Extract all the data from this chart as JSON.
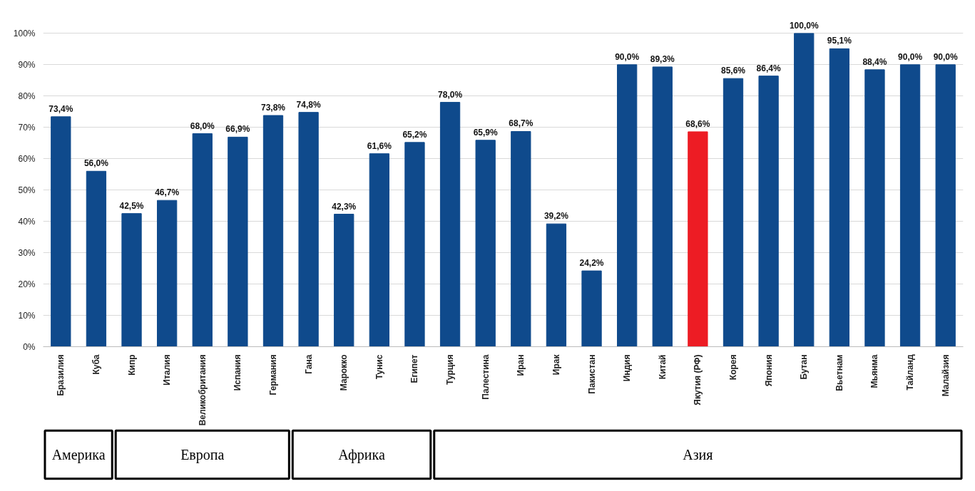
{
  "chart_data": {
    "type": "bar",
    "categories": [
      "Бразилия",
      "Куба",
      "Кипр",
      "Италия",
      "Великобритания",
      "Испания",
      "Германия",
      "Гана",
      "Марокко",
      "Тунис",
      "Египет",
      "Турция",
      "Палестина",
      "Иран",
      "Ирак",
      "Пакистан",
      "Индия",
      "Китай",
      "Якутия (РФ)",
      "Корея",
      "Япония",
      "Бутан",
      "Вьетнам",
      "Мьянма",
      "Тайланд",
      "Малайзия"
    ],
    "values": [
      73.4,
      56.0,
      42.5,
      46.7,
      68.0,
      66.9,
      73.8,
      74.8,
      42.3,
      61.6,
      65.2,
      78.0,
      65.9,
      68.7,
      39.2,
      24.2,
      90.0,
      89.3,
      68.6,
      85.6,
      86.4,
      100.0,
      95.1,
      88.4,
      90.0,
      90.0
    ],
    "value_labels": [
      "73,4%",
      "56,0%",
      "42,5%",
      "46,7%",
      "68,0%",
      "66,9%",
      "73,8%",
      "74,8%",
      "42,3%",
      "61,6%",
      "65,2%",
      "78,0%",
      "65,9%",
      "68,7%",
      "39,2%",
      "24,2%",
      "90,0%",
      "89,3%",
      "68,6%",
      "85,6%",
      "86,4%",
      "100,0%",
      "95,1%",
      "88,4%",
      "90,0%",
      "90,0%"
    ],
    "colors": [
      "#0f4a8c",
      "#0f4a8c",
      "#0f4a8c",
      "#0f4a8c",
      "#0f4a8c",
      "#0f4a8c",
      "#0f4a8c",
      "#0f4a8c",
      "#0f4a8c",
      "#0f4a8c",
      "#0f4a8c",
      "#0f4a8c",
      "#0f4a8c",
      "#0f4a8c",
      "#0f4a8c",
      "#0f4a8c",
      "#0f4a8c",
      "#0f4a8c",
      "#ed1c24",
      "#0f4a8c",
      "#0f4a8c",
      "#0f4a8c",
      "#0f4a8c",
      "#0f4a8c",
      "#0f4a8c",
      "#0f4a8c"
    ],
    "ylim": [
      0,
      100
    ],
    "yticks": [
      {
        "value": 0,
        "label": "0%"
      },
      {
        "value": 10,
        "label": "10%"
      },
      {
        "value": 20,
        "label": "20%"
      },
      {
        "value": 30,
        "label": "30%"
      },
      {
        "value": 40,
        "label": "40%"
      },
      {
        "value": 50,
        "label": "50%"
      },
      {
        "value": 60,
        "label": "60%"
      },
      {
        "value": 70,
        "label": "70%"
      },
      {
        "value": 80,
        "label": "80%"
      },
      {
        "value": 90,
        "label": "90%"
      },
      {
        "value": 100,
        "label": "100%"
      }
    ],
    "grid": "y",
    "annotations": [
      "Америка",
      "Европа",
      "Африка",
      "Азия"
    ]
  }
}
